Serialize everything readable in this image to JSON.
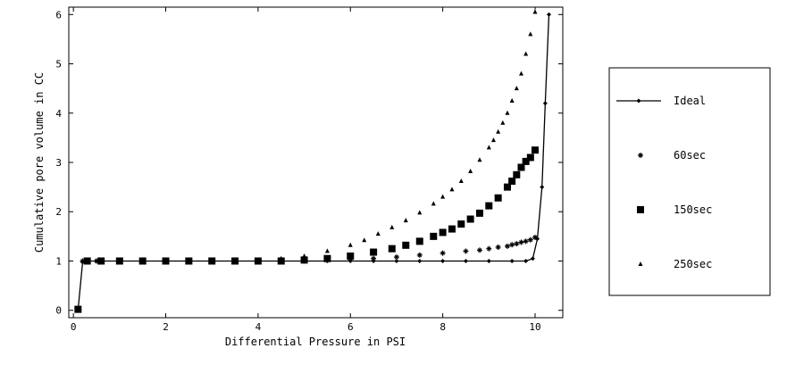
{
  "chart_data": {
    "type": "scatter",
    "title": "",
    "xlabel": "Differential Pressure in PSI",
    "ylabel": "Cumulative pore volume in CC",
    "xlim": [
      -0.1,
      10.6
    ],
    "ylim": [
      -0.15,
      6.15
    ],
    "x_ticks": [
      "0",
      "2",
      "4",
      "6",
      "8",
      "10"
    ],
    "y_ticks": [
      "0",
      "1",
      "2",
      "3",
      "4",
      "5",
      "6"
    ],
    "grid": false,
    "legend_position": "right, outside plot",
    "series": [
      {
        "name": "Ideal",
        "marker": "diamond-line",
        "color": "#000000",
        "x": [
          0.1,
          0.2,
          0.3,
          0.5,
          1,
          1.5,
          2,
          2.5,
          3,
          3.5,
          4,
          4.5,
          5,
          5.5,
          6,
          6.5,
          7,
          7.5,
          8,
          8.5,
          9,
          9.5,
          9.8,
          9.95,
          10.05,
          10.15,
          10.22,
          10.3
        ],
        "y": [
          0.0,
          0.98,
          1.0,
          1.0,
          1.0,
          1.0,
          1.0,
          1.0,
          1.0,
          1.0,
          1.0,
          1.0,
          1.0,
          1.0,
          1.0,
          1.0,
          1.0,
          1.0,
          1.0,
          1.0,
          1.0,
          1.0,
          1.0,
          1.05,
          1.45,
          2.5,
          4.2,
          6.0
        ]
      },
      {
        "name": "60sec",
        "marker": "star",
        "color": "#000000",
        "x": [
          0.2,
          0.5,
          1,
          1.5,
          2,
          2.5,
          3,
          3.5,
          4,
          4.5,
          5,
          5.5,
          6,
          6.5,
          7,
          7.5,
          8,
          8.5,
          8.8,
          9.0,
          9.2,
          9.4,
          9.5,
          9.6,
          9.7,
          9.8,
          9.9,
          10.0
        ],
        "y": [
          1.0,
          1.0,
          1.0,
          1.0,
          1.0,
          1.0,
          1.0,
          1.0,
          1.0,
          1.0,
          1.0,
          1.02,
          1.03,
          1.05,
          1.08,
          1.12,
          1.16,
          1.2,
          1.22,
          1.25,
          1.28,
          1.3,
          1.33,
          1.35,
          1.38,
          1.4,
          1.43,
          1.48
        ]
      },
      {
        "name": "150sec",
        "marker": "square",
        "color": "#000000",
        "x": [
          0.1,
          0.3,
          0.6,
          1.0,
          1.5,
          2.0,
          2.5,
          3.0,
          3.5,
          4.0,
          4.5,
          5.0,
          5.5,
          6.0,
          6.5,
          6.9,
          7.2,
          7.5,
          7.8,
          8.0,
          8.2,
          8.4,
          8.6,
          8.8,
          9.0,
          9.2,
          9.4,
          9.5,
          9.6,
          9.7,
          9.8,
          9.9,
          10.0
        ],
        "y": [
          0.02,
          1.0,
          1.0,
          1.0,
          1.0,
          1.0,
          1.0,
          1.0,
          1.0,
          1.0,
          1.0,
          1.02,
          1.05,
          1.1,
          1.18,
          1.25,
          1.32,
          1.4,
          1.5,
          1.58,
          1.65,
          1.75,
          1.85,
          1.97,
          2.12,
          2.28,
          2.5,
          2.62,
          2.75,
          2.9,
          3.02,
          3.1,
          3.25
        ]
      },
      {
        "name": "250sec",
        "marker": "triangle",
        "color": "#000000",
        "x": [
          0.2,
          1,
          2,
          3,
          4,
          4.5,
          5.0,
          5.5,
          6.0,
          6.3,
          6.6,
          6.9,
          7.2,
          7.5,
          7.8,
          8.0,
          8.2,
          8.4,
          8.6,
          8.8,
          9.0,
          9.1,
          9.2,
          9.3,
          9.4,
          9.5,
          9.6,
          9.7,
          9.8,
          9.9,
          10.0
        ],
        "y": [
          1.0,
          1.0,
          1.0,
          1.0,
          1.02,
          1.05,
          1.1,
          1.2,
          1.32,
          1.42,
          1.55,
          1.68,
          1.82,
          1.98,
          2.16,
          2.3,
          2.45,
          2.62,
          2.82,
          3.05,
          3.3,
          3.45,
          3.62,
          3.8,
          4.0,
          4.25,
          4.5,
          4.8,
          5.2,
          5.6,
          6.05
        ]
      }
    ]
  }
}
